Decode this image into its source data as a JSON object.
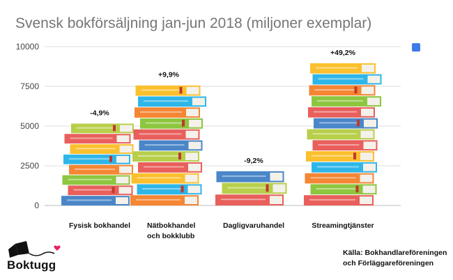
{
  "chart_data": {
    "type": "bar",
    "title": "Svensk bokförsäljning jan-jun 2018 (miljoner exemplar)",
    "categories": [
      [
        "Fysisk bokhandel"
      ],
      [
        "Nätbokhandel",
        "och bokklubb"
      ],
      [
        "Dagligvaruhandel"
      ],
      [
        "Streamingtjänster"
      ]
    ],
    "series": [
      {
        "values": [
          5200,
          7600,
          2200,
          9000
        ]
      }
    ],
    "change_labels": [
      "-4,9%",
      "+9,9%",
      "-9,2%",
      "+49,2%"
    ],
    "y_ticks": [
      "0",
      "2500",
      "5000",
      "7500",
      "10000"
    ],
    "ylim": [
      0,
      10000
    ],
    "legend": "top-right",
    "legend_color": "#3d7be6",
    "grid": true
  },
  "source": {
    "lines": [
      "Källa: Bokhandlareföreningen",
      "och Förläggareföreningen"
    ]
  },
  "logo": {
    "text": "Boktugg",
    "icon": "books-and-heart-logo"
  },
  "colors": {
    "book_palette": [
      "#4a86c8",
      "#e85f5c",
      "#8dc63f",
      "#f58634",
      "#2fb6e8",
      "#fbc02d",
      "#e85f5c",
      "#b8cf4b"
    ],
    "pages": "#f3f1ea",
    "grid": "#dddddd"
  }
}
